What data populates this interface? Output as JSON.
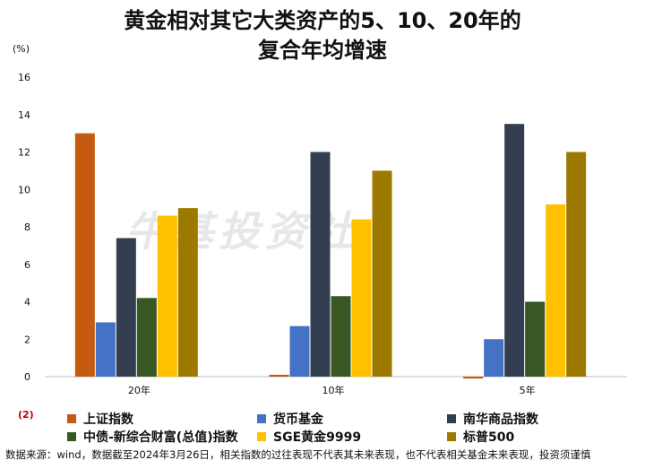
{
  "header": {
    "title_line1": "黄金相对其它大类资产的5、10、20年的",
    "title_line2": "复合年均增速"
  },
  "watermark": "牛基投资社",
  "unit_marker": "(2)",
  "source_note": "数据来源：wind，数据截至2024年3月26日，相关指数的过往表现不代表其未来表现，也不代表相关基金未来表现，投资须谨慎",
  "chart_data": {
    "type": "bar",
    "ylabel": "(%)",
    "ylim": [
      0,
      16
    ],
    "yticks": [
      0,
      2,
      4,
      6,
      8,
      10,
      12,
      14,
      16
    ],
    "categories": [
      "20年",
      "10年",
      "5年"
    ],
    "series": [
      {
        "name": "上证指数",
        "color": "#C55A11",
        "values": [
          13.0,
          0.1,
          -0.1
        ]
      },
      {
        "name": "货币基金",
        "color": "#4472C4",
        "values": [
          2.9,
          2.7,
          2.0
        ]
      },
      {
        "name": "南华商品指数",
        "color": "#333F50",
        "values": [
          7.4,
          12.0,
          13.5
        ]
      },
      {
        "name": "中债-新综合财富(总值)指数",
        "color": "#385723",
        "values": [
          4.2,
          4.3,
          4.0
        ]
      },
      {
        "name": "SGE黄金9999",
        "color": "#FFC000",
        "values": [
          8.6,
          8.4,
          9.2
        ]
      },
      {
        "name": "标普500",
        "color": "#9C7A00",
        "values": [
          9.0,
          11.0,
          12.0
        ]
      }
    ],
    "legend_position": "bottom",
    "grid": false
  }
}
